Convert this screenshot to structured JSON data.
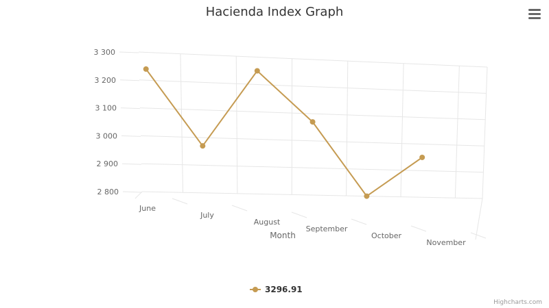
{
  "chart_data": {
    "type": "line",
    "title": "Hacienda Index Graph",
    "xlabel": "Month",
    "ylabel": "",
    "categories": [
      "June",
      "July",
      "August",
      "September",
      "October",
      "November"
    ],
    "y_ticks": [
      "2 800",
      "2 900",
      "3 000",
      "3 100",
      "3 200",
      "3 300"
    ],
    "ylim": [
      2800,
      3300
    ],
    "grid": true,
    "three_d": true,
    "legend_position": "bottom-center",
    "series": [
      {
        "name": "3296.91",
        "values": [
          3240,
          2970,
          3250,
          3070,
          2800,
          2950
        ]
      }
    ],
    "series_color": "#c59b52"
  },
  "credits": "Highcharts.com",
  "menu_icon": "hamburger-icon"
}
